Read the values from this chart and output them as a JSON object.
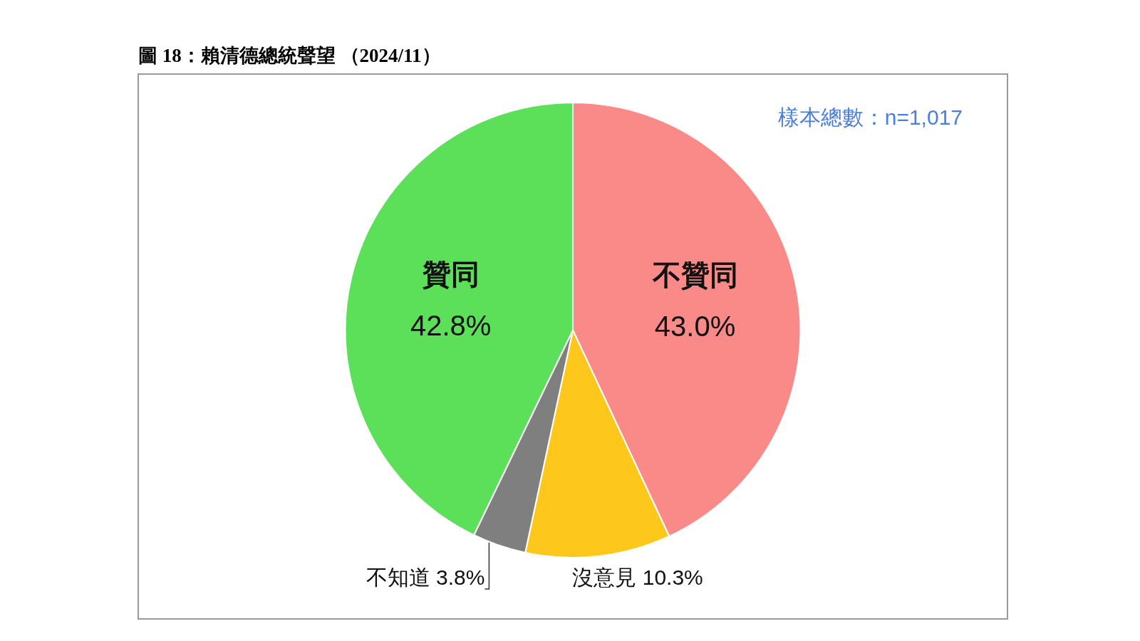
{
  "chart_data": {
    "type": "pie",
    "title": "圖 18：賴清德總統聲望 （2024/11）",
    "categories": [
      "不贊同",
      "沒意見",
      "不知道",
      "贊同"
    ],
    "values": [
      43.0,
      10.3,
      3.8,
      42.8
    ],
    "colors": [
      "#fa8a88",
      "#fdc81b",
      "#7f7f7f",
      "#5ce05a"
    ],
    "value_labels": [
      "43.0%",
      "10.3%",
      "3.8%",
      "42.8%"
    ],
    "annotations": [
      "樣本總數：n=1,017"
    ]
  }
}
